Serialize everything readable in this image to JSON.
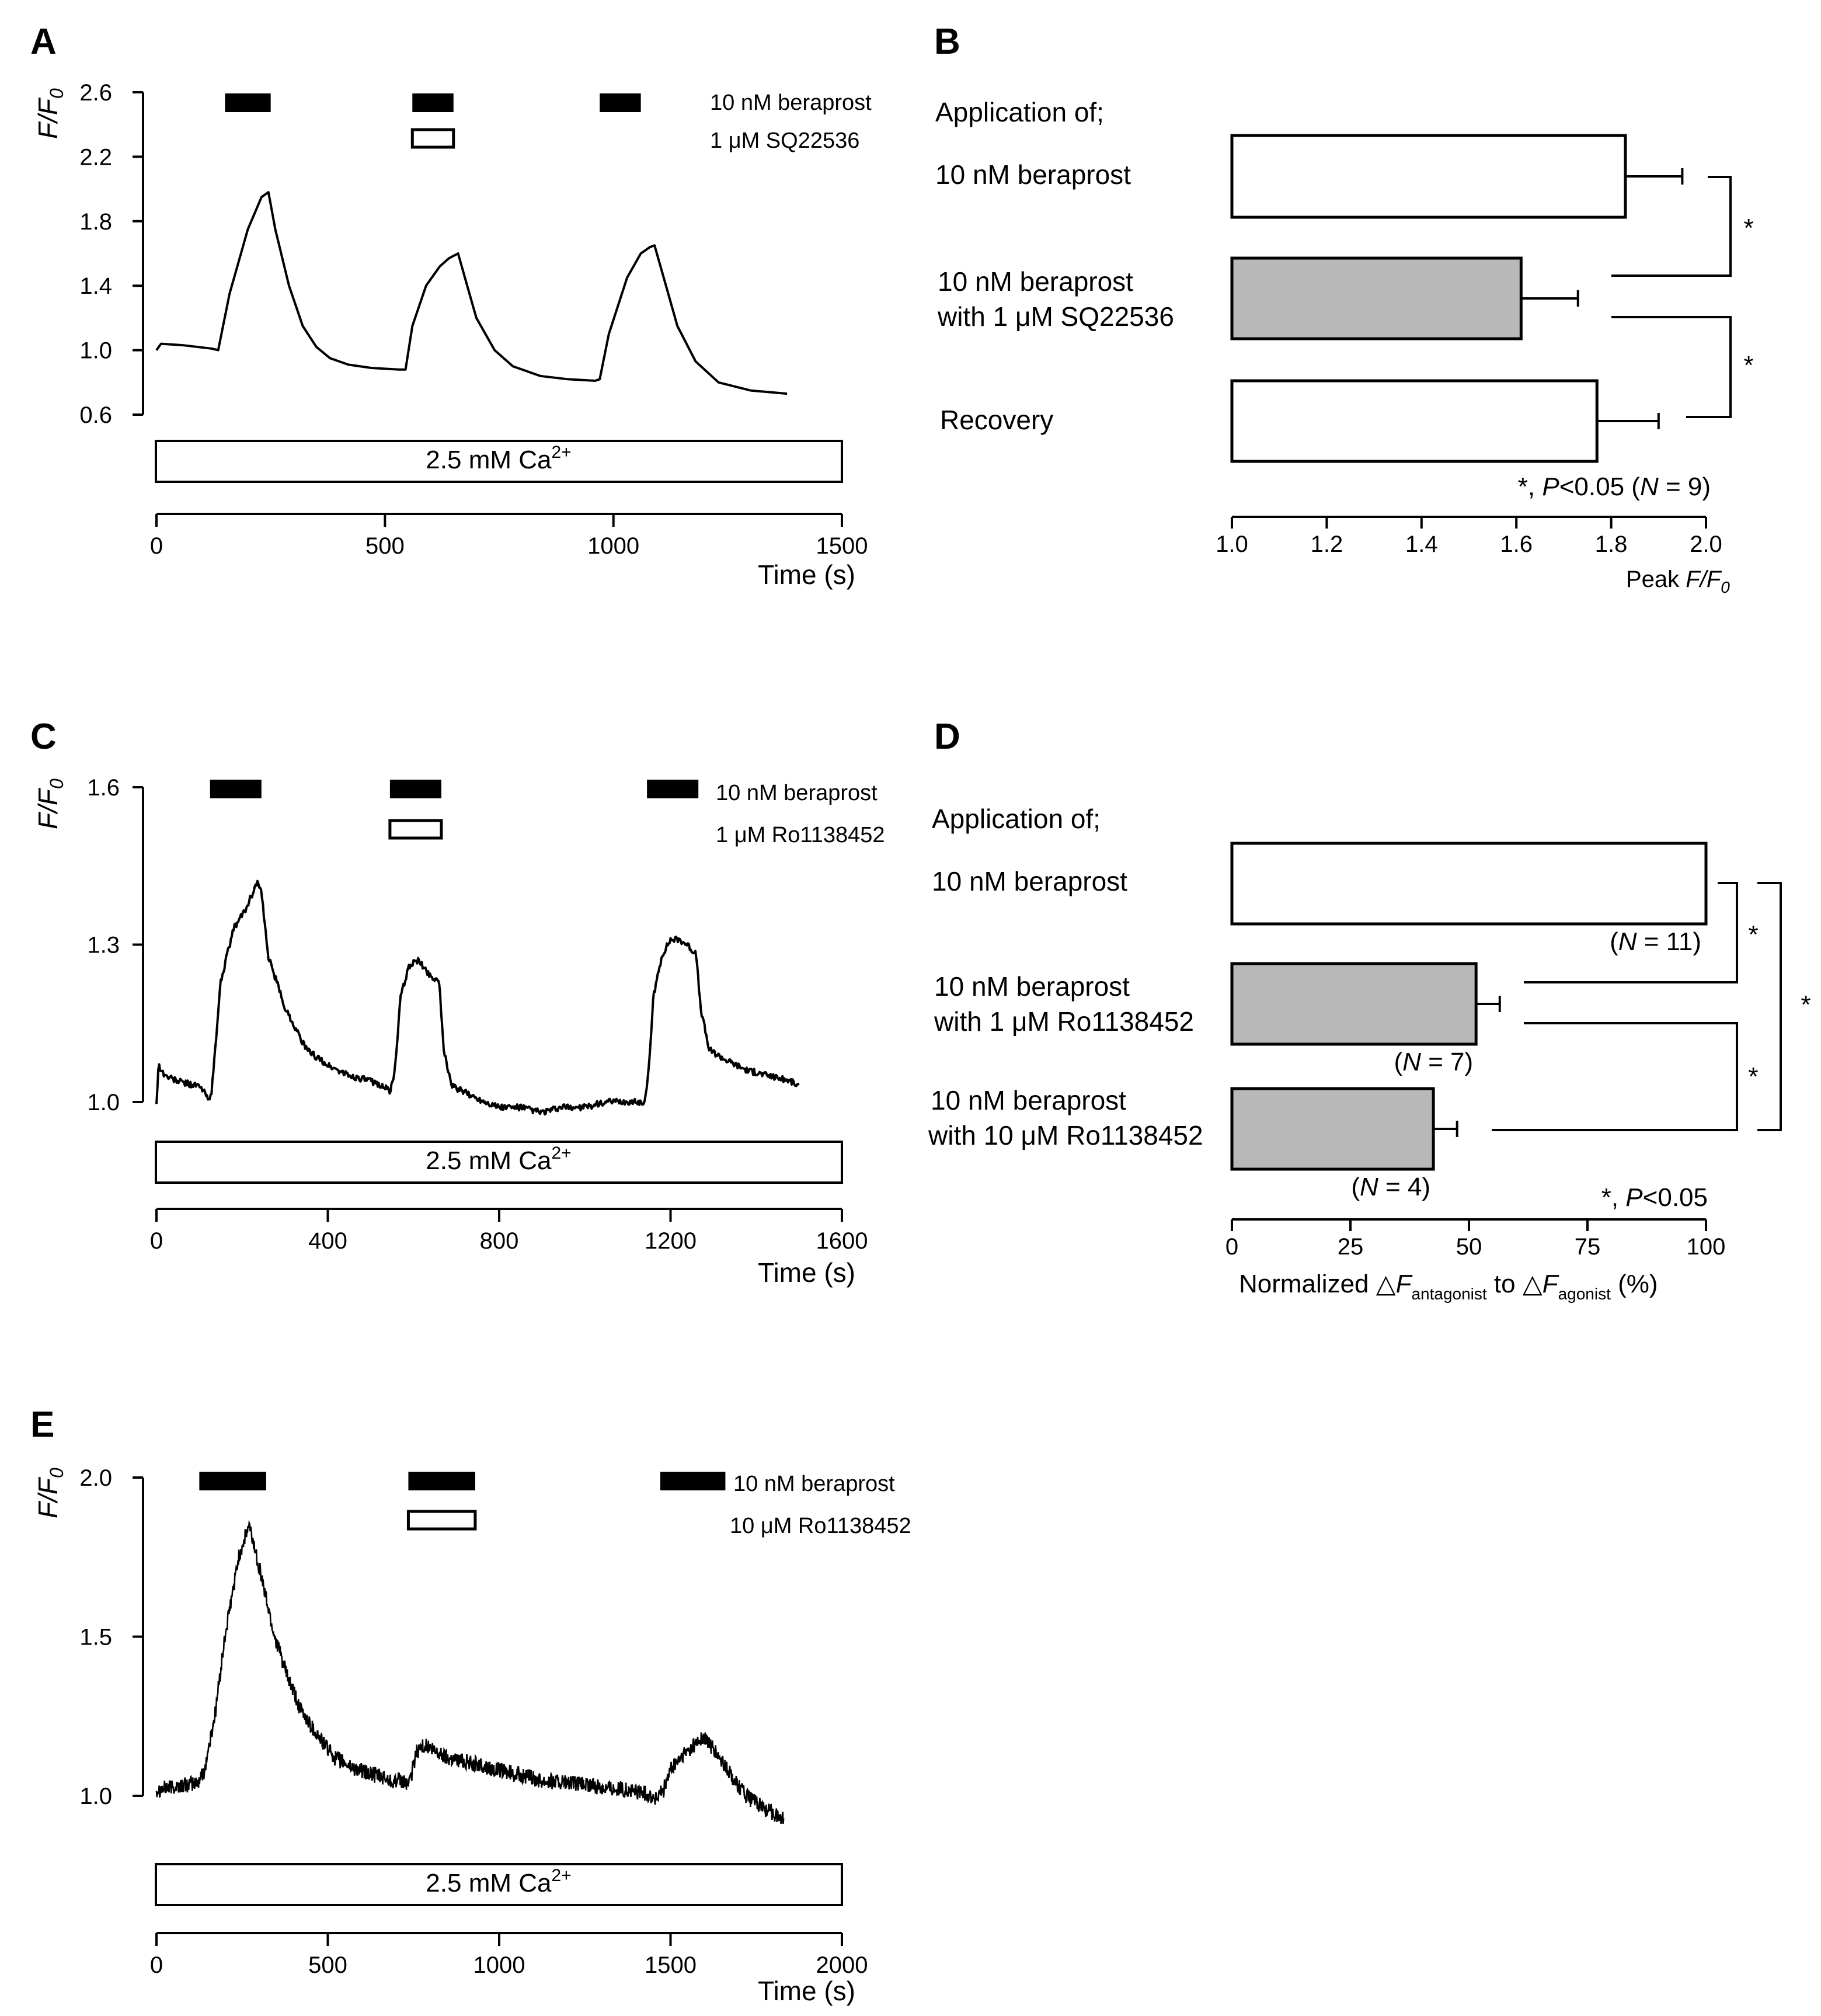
{
  "chart_data": [
    {
      "panel": "A",
      "type": "line",
      "ylabel": "F/F0",
      "xlabel": "Time (s)",
      "xlim": [
        0,
        1500
      ],
      "ylim": [
        0.6,
        2.6
      ],
      "xticks": [
        "0",
        "500",
        "1000",
        "1500"
      ],
      "yticks": [
        "0.6",
        "1.0",
        "1.4",
        "1.8",
        "2.2",
        "2.6"
      ],
      "legend": [
        "10 nM beraprost",
        "1 μM SQ22536"
      ],
      "bath": "2.5 mM Ca2+",
      "agonist_bars": [
        [
          150,
          250
        ],
        [
          560,
          650
        ],
        [
          970,
          1060
        ]
      ],
      "antagonist_bars": [
        [
          560,
          650
        ]
      ],
      "series": [
        {
          "name": "F/F0",
          "x": [
            0,
            10,
            60,
            120,
            135,
            160,
            200,
            230,
            245,
            260,
            290,
            320,
            350,
            380,
            420,
            470,
            530,
            545,
            560,
            590,
            620,
            640,
            660,
            675,
            700,
            740,
            780,
            840,
            900,
            960,
            970,
            990,
            1030,
            1060,
            1080,
            1090,
            1110,
            1140,
            1180,
            1230,
            1300,
            1380
          ],
          "y": [
            1.0,
            1.04,
            1.03,
            1.01,
            1.0,
            1.35,
            1.75,
            1.95,
            1.98,
            1.75,
            1.4,
            1.15,
            1.02,
            0.95,
            0.91,
            0.89,
            0.88,
            0.88,
            1.15,
            1.4,
            1.52,
            1.57,
            1.6,
            1.45,
            1.2,
            1.0,
            0.9,
            0.84,
            0.82,
            0.81,
            0.82,
            1.1,
            1.45,
            1.6,
            1.64,
            1.65,
            1.45,
            1.15,
            0.93,
            0.8,
            0.75,
            0.73
          ]
        }
      ]
    },
    {
      "panel": "B",
      "type": "bar",
      "orientation": "horizontal",
      "heading": "Application of;",
      "categories": [
        "10 nM beraprost",
        "10 nM beraprost",
        "Recovery"
      ],
      "categories_line2": [
        "",
        "with 1 μM SQ22536",
        ""
      ],
      "values": [
        1.83,
        1.61,
        1.77
      ],
      "errors": [
        0.12,
        0.12,
        0.13
      ],
      "xlim": [
        1.0,
        2.0
      ],
      "xticks": [
        "1.0",
        "1.2",
        "1.4",
        "1.6",
        "1.8",
        "2.0"
      ],
      "xlabel": "Peak F/F0",
      "significance": [
        "*",
        "*"
      ],
      "note": "*, P<0.05 (N = 9)"
    },
    {
      "panel": "C",
      "type": "line",
      "ylabel": "F/F0",
      "xlabel": "Time (s)",
      "xlim": [
        0,
        1600
      ],
      "ylim": [
        1.0,
        1.6
      ],
      "xticks": [
        "0",
        "400",
        "800",
        "1200",
        "1600"
      ],
      "yticks": [
        "1.0",
        "1.3",
        "1.6"
      ],
      "legend": [
        "10 nM beraprost",
        "1 μM Ro1138452"
      ],
      "bath": "2.5 mM Ca2+",
      "agonist_bars": [
        [
          125,
          245
        ],
        [
          545,
          665
        ],
        [
          1145,
          1265
        ]
      ],
      "antagonist_bars": [
        [
          545,
          665
        ]
      ],
      "series": [
        {
          "name": "F/F0",
          "x": [
            0,
            5,
            20,
            50,
            100,
            120,
            128,
            150,
            180,
            210,
            235,
            245,
            260,
            300,
            350,
            400,
            450,
            500,
            530,
            545,
            555,
            570,
            590,
            610,
            640,
            660,
            670,
            690,
            740,
            800,
            850,
            900,
            950,
            1000,
            1050,
            1100,
            1140,
            1148,
            1160,
            1180,
            1200,
            1220,
            1240,
            1260,
            1270,
            1290,
            1330,
            1380,
            1430,
            1480,
            1500
          ],
          "y": [
            1.0,
            1.07,
            1.05,
            1.04,
            1.03,
            1.01,
            1.01,
            1.23,
            1.33,
            1.37,
            1.42,
            1.4,
            1.28,
            1.18,
            1.1,
            1.07,
            1.05,
            1.04,
            1.03,
            1.02,
            1.05,
            1.2,
            1.26,
            1.27,
            1.24,
            1.23,
            1.1,
            1.03,
            1.01,
            0.99,
            0.99,
            0.98,
            0.99,
            0.99,
            1.0,
            1.0,
            1.0,
            1.05,
            1.2,
            1.28,
            1.31,
            1.31,
            1.3,
            1.28,
            1.18,
            1.1,
            1.08,
            1.06,
            1.05,
            1.04,
            1.03
          ]
        }
      ]
    },
    {
      "panel": "D",
      "type": "bar",
      "orientation": "horizontal",
      "heading": "Application of;",
      "categories": [
        "10 nM beraprost",
        "10 nM beraprost",
        "10 nM beraprost"
      ],
      "categories_line2": [
        "",
        "with 1 μM Ro1138452",
        "with 10 μM Ro1138452"
      ],
      "values": [
        100,
        51.5,
        42.5
      ],
      "errors": [
        0,
        5,
        5
      ],
      "n_labels": [
        "(N = 11)",
        "(N = 7)",
        "(N = 4)"
      ],
      "xlim": [
        0,
        100
      ],
      "xticks": [
        "0",
        "25",
        "50",
        "75",
        "100"
      ],
      "xlabel": "Normalized △F_antagonist to △F_agonist (%)",
      "xlabel_parts": [
        "Normalized △",
        "F",
        "antagonist",
        " to △",
        "F",
        "agonist",
        "(%)"
      ],
      "significance": [
        "*",
        "*",
        "*"
      ],
      "note": "*, P<0.05"
    },
    {
      "panel": "E",
      "type": "line",
      "ylabel": "F/F0",
      "xlabel": "Time (s)",
      "xlim": [
        0,
        2000
      ],
      "ylim": [
        1.0,
        2.0
      ],
      "xticks": [
        "0",
        "500",
        "1000",
        "1500",
        "2000"
      ],
      "yticks": [
        "1.0",
        "1.5",
        "2.0"
      ],
      "legend": [
        "10 nM beraprost",
        "10 μM Ro1138452"
      ],
      "bath": "2.5 mM Ca2+",
      "agonist_bars": [
        [
          125,
          320
        ],
        [
          735,
          930
        ],
        [
          1470,
          1660
        ]
      ],
      "antagonist_bars": [
        [
          735,
          930
        ]
      ],
      "noise": 0.025,
      "series": [
        {
          "name": "F/F0",
          "x": [
            0,
            60,
            120,
            140,
            170,
            200,
            240,
            270,
            300,
            340,
            380,
            420,
            470,
            520,
            570,
            620,
            680,
            740,
            750,
            760,
            780,
            810,
            850,
            900,
            960,
            1040,
            1120,
            1200,
            1280,
            1360,
            1420,
            1460,
            1480,
            1500,
            1530,
            1560,
            1590,
            1610,
            1640,
            1680,
            1720,
            1760,
            1790,
            1830
          ],
          "y": [
            1.02,
            1.03,
            1.04,
            1.08,
            1.25,
            1.5,
            1.75,
            1.85,
            1.72,
            1.52,
            1.38,
            1.27,
            1.19,
            1.12,
            1.09,
            1.07,
            1.05,
            1.04,
            1.1,
            1.14,
            1.16,
            1.14,
            1.12,
            1.11,
            1.09,
            1.07,
            1.05,
            1.04,
            1.03,
            1.02,
            1.01,
            0.99,
            1.02,
            1.08,
            1.12,
            1.15,
            1.18,
            1.17,
            1.12,
            1.06,
            1.0,
            0.97,
            0.95,
            0.93
          ]
        }
      ]
    }
  ]
}
